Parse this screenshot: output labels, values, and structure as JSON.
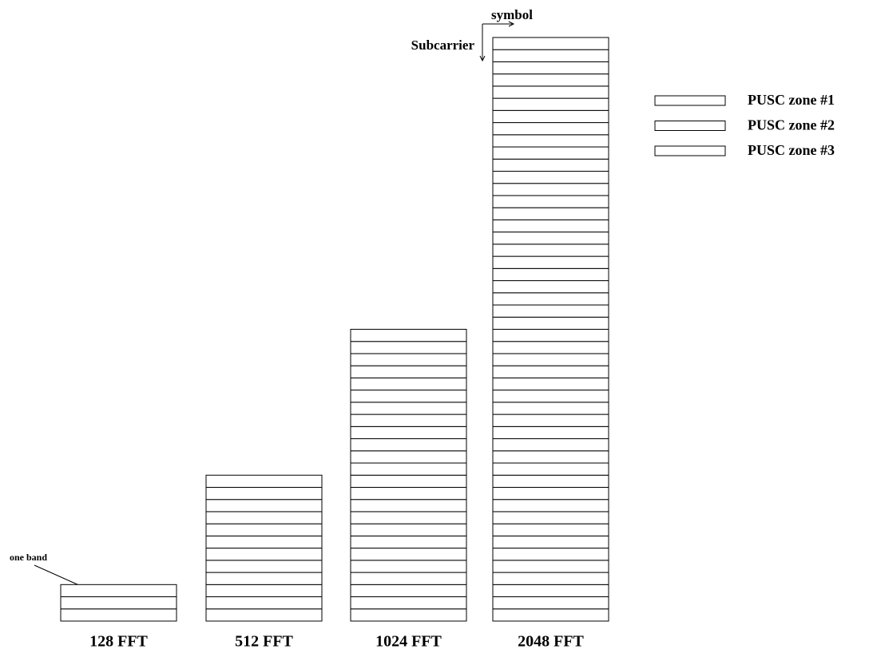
{
  "diagram": {
    "columns": [
      {
        "label": "128 FFT",
        "bands": 3
      },
      {
        "label": "512 FFT",
        "bands": 12
      },
      {
        "label": "1024 FFT",
        "bands": 24
      },
      {
        "label": "2048 FFT",
        "bands": 48
      }
    ],
    "legend": [
      "PUSC zone #1",
      "PUSC zone #2",
      "PUSC zone #3"
    ],
    "x_axis_label": "symbol",
    "y_axis_label": "Subcarrier",
    "annotation": "one band"
  }
}
